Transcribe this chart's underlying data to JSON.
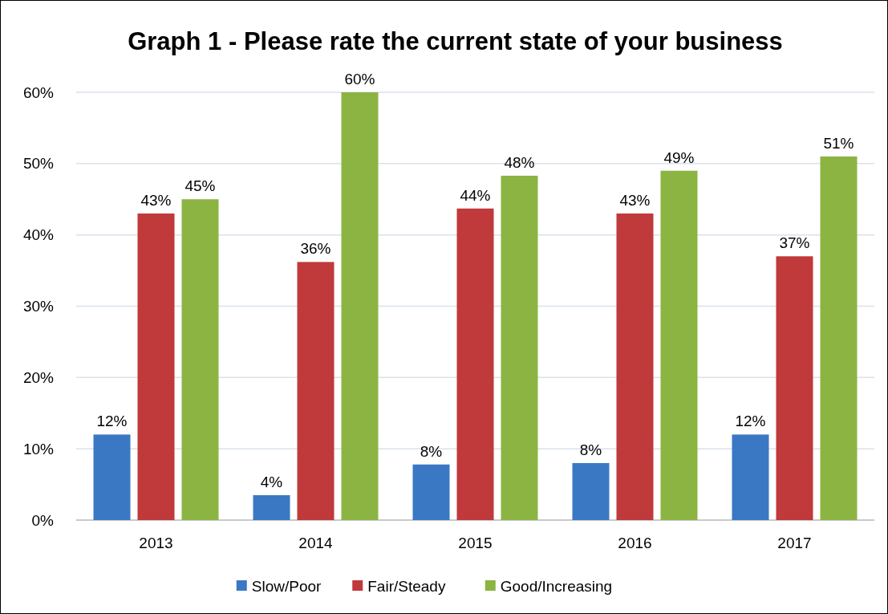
{
  "chart_data": {
    "type": "bar",
    "title": "Graph 1 - Please rate the current state of your business",
    "categories": [
      "2013",
      "2014",
      "2015",
      "2016",
      "2017"
    ],
    "series": [
      {
        "name": "Slow/Poor",
        "color": "#3a78c3",
        "values": [
          12,
          3.5,
          7.8,
          8,
          12
        ],
        "value_labels": [
          "12%",
          "4%",
          "8%",
          "8%",
          "12%"
        ]
      },
      {
        "name": "Fair/Steady",
        "color": "#c0393b",
        "values": [
          43,
          36.2,
          43.7,
          43,
          37
        ],
        "value_labels": [
          "43%",
          "36%",
          "44%",
          "43%",
          "37%"
        ]
      },
      {
        "name": "Good/Increasing",
        "color": "#8cb443",
        "values": [
          45,
          60,
          48.3,
          49,
          51
        ],
        "value_labels": [
          "45%",
          "60%",
          "48%",
          "49%",
          "51%"
        ]
      }
    ],
    "ylim": [
      0,
      60
    ],
    "yticks": [
      {
        "value": 0,
        "label": "0%"
      },
      {
        "value": 10,
        "label": "10%"
      },
      {
        "value": 20,
        "label": "20%"
      },
      {
        "value": 30,
        "label": "30%"
      },
      {
        "value": 40,
        "label": "40%"
      },
      {
        "value": 50,
        "label": "50%"
      },
      {
        "value": 60,
        "label": "60%"
      }
    ],
    "grid": "y",
    "legend": "bottom"
  }
}
